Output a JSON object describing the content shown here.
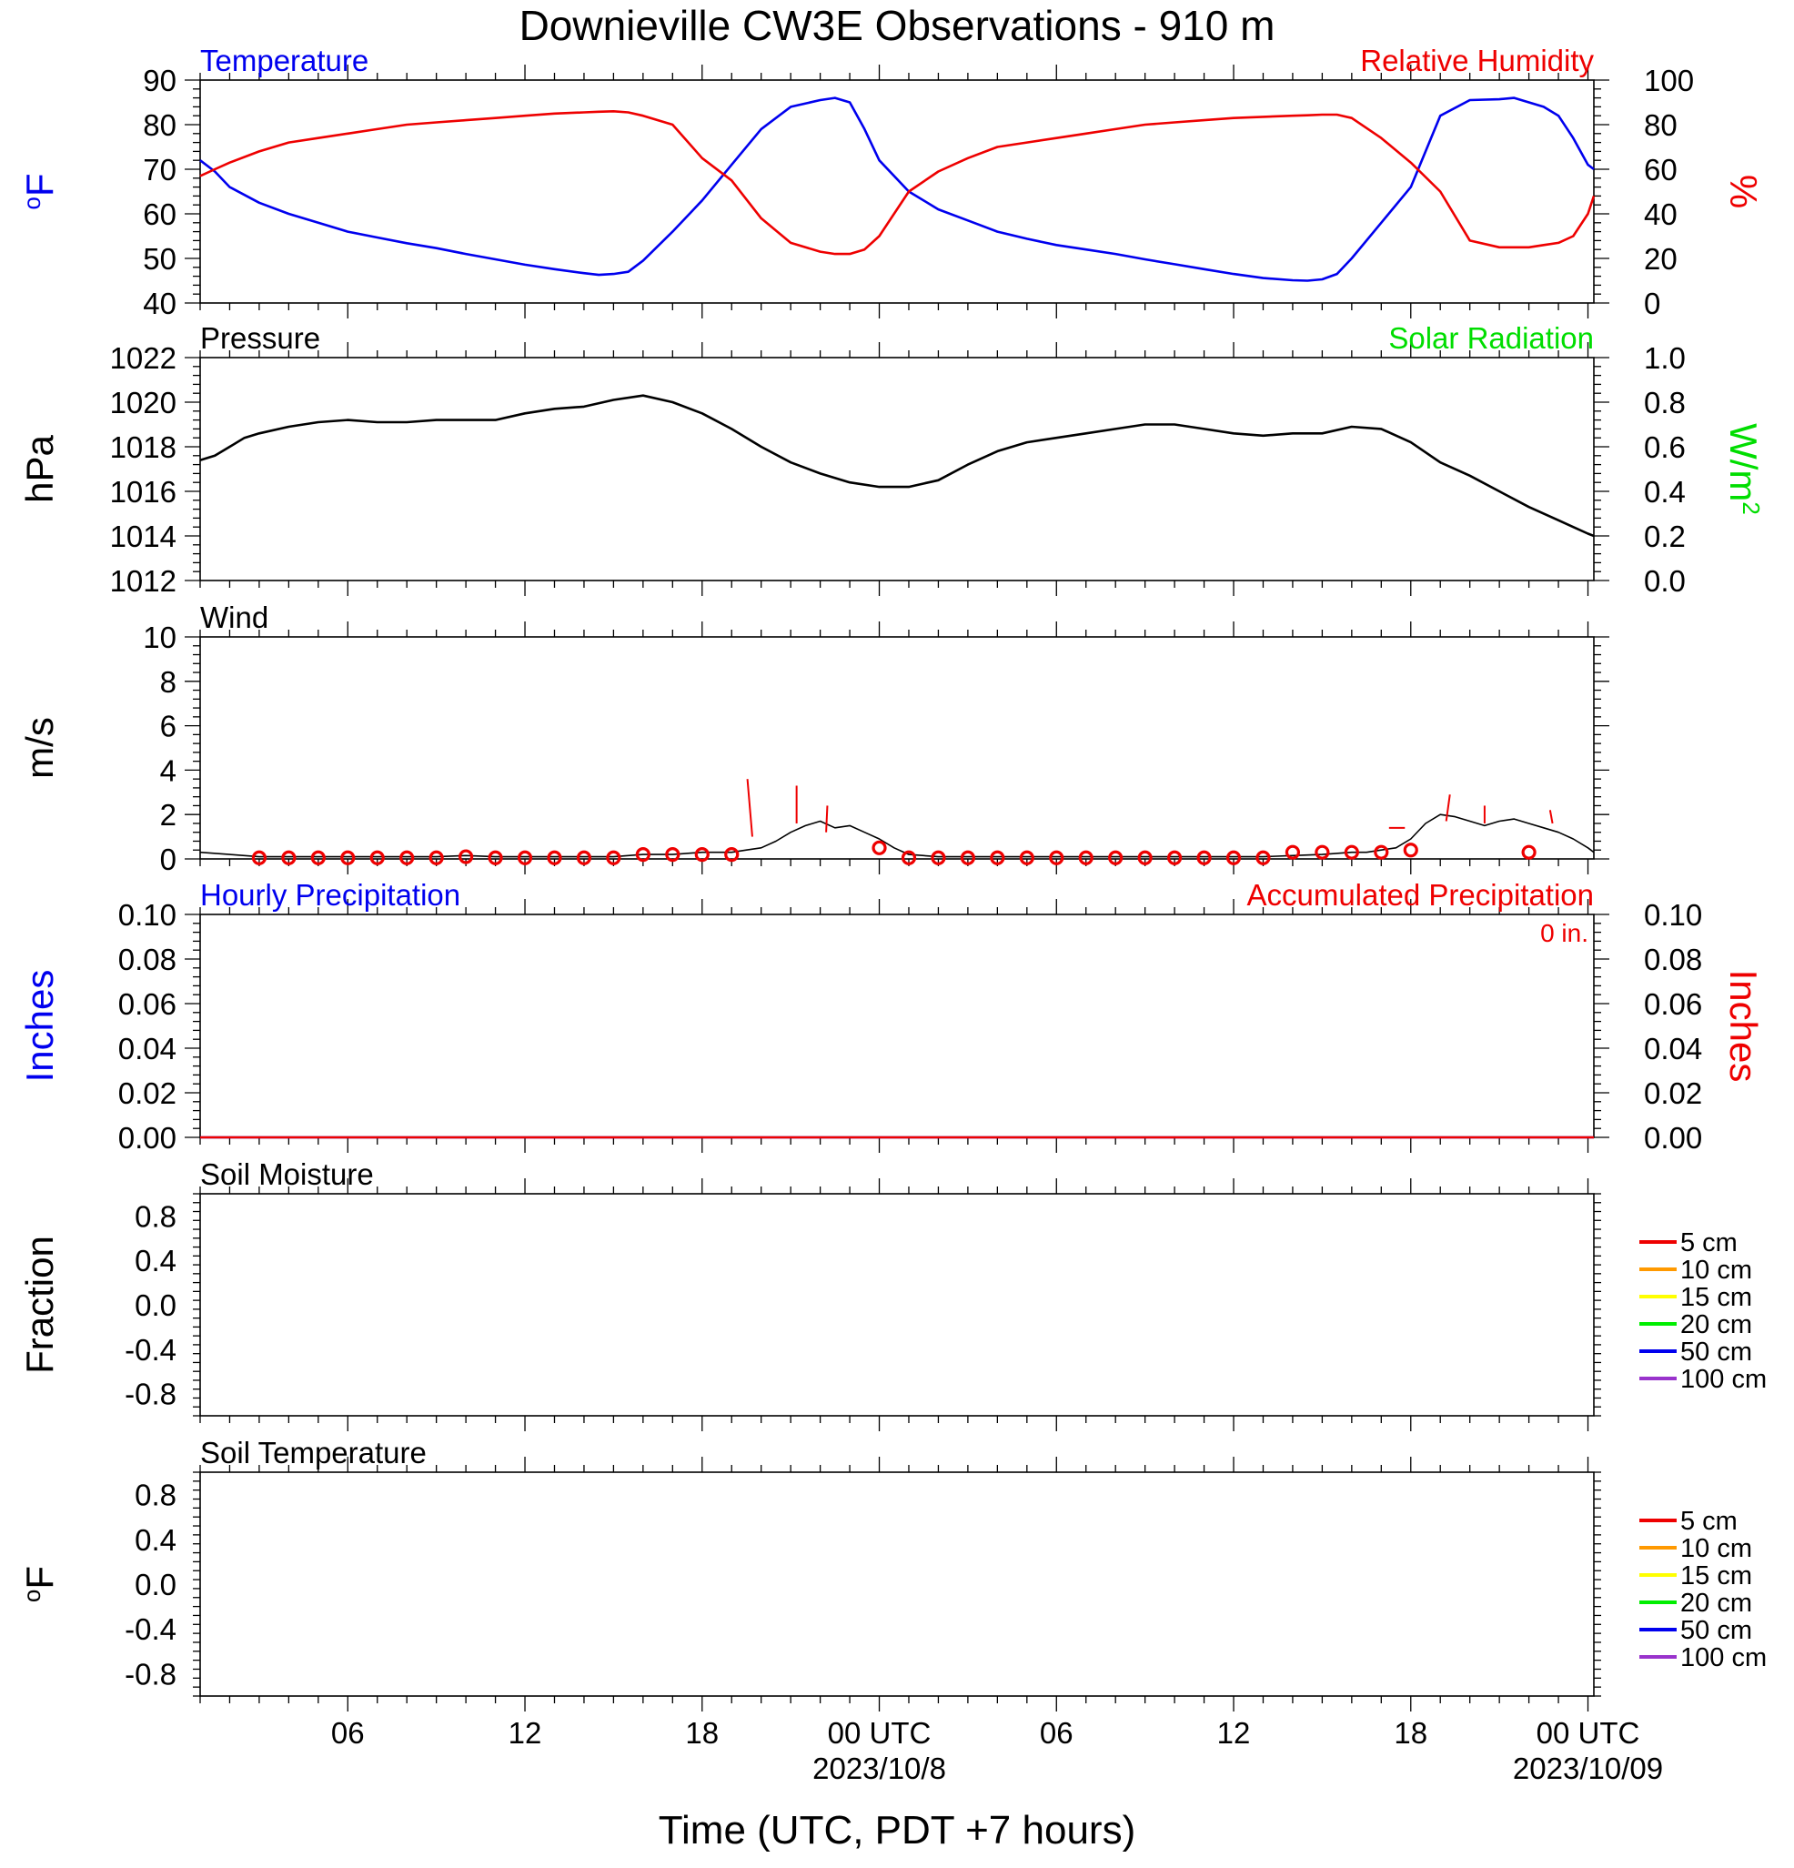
{
  "title": "Downieville CW3E Observations - 910 m",
  "xaxis": {
    "title": "Time (UTC, PDT +7 hours)",
    "tick_hours": [
      6,
      12,
      18,
      24,
      30,
      36,
      42,
      48
    ],
    "tick_labels": [
      "06",
      "12",
      "18",
      "00 UTC",
      "06",
      "12",
      "18",
      "00 UTC"
    ],
    "date_labels": [
      {
        "hour": 24,
        "text": "2023/10/8"
      },
      {
        "hour": 48,
        "text": "2023/10/09"
      }
    ],
    "range_hours": [
      1,
      48.2
    ]
  },
  "colors": {
    "temperature": "#0000ee",
    "humidity": "#ee0000",
    "solar": "#00dd00",
    "black": "#000000",
    "soil": [
      "#ee0000",
      "#ff9900",
      "#ffff00",
      "#00ee00",
      "#0000ee",
      "#9933cc"
    ]
  },
  "chart_data": [
    {
      "type": "line",
      "name": "temperature-humidity",
      "left_title": "Temperature",
      "right_title": "Relative Humidity",
      "left_unit": "oF",
      "right_unit": "%",
      "left_ticks": [
        "40",
        "50",
        "60",
        "70",
        "80",
        "90"
      ],
      "right_ticks": [
        "0",
        "20",
        "40",
        "60",
        "80",
        "100"
      ],
      "ylim_left": [
        40,
        90
      ],
      "ylim_right": [
        0,
        100
      ],
      "x_hours": [
        1,
        1.5,
        2,
        3,
        4,
        5,
        6,
        7,
        8,
        9,
        10,
        11,
        12,
        13,
        14,
        14.5,
        15,
        15.5,
        16,
        17,
        18,
        19,
        20,
        21,
        22,
        22.5,
        23,
        23.5,
        24,
        25,
        26,
        27,
        28,
        29,
        30,
        31,
        32,
        33,
        34,
        35,
        36,
        37,
        38,
        38.5,
        39,
        39.5,
        40,
        41,
        42,
        43,
        44,
        45,
        45.5,
        46,
        46.5,
        47,
        47.5,
        48,
        48.2
      ],
      "series": [
        {
          "name": "Temperature",
          "values": [
            72,
            69.5,
            66,
            62.5,
            60,
            58,
            56,
            54.7,
            53.4,
            52.3,
            51,
            49.8,
            48.6,
            47.6,
            46.7,
            46.3,
            46.5,
            47,
            49.5,
            56,
            63,
            71,
            79,
            84,
            85.5,
            86,
            85,
            79,
            72,
            65,
            61,
            58.5,
            56,
            54.4,
            53,
            52,
            51,
            49.8,
            48.7,
            47.6,
            46.5,
            45.6,
            45.1,
            45,
            45.3,
            46.5,
            50,
            58,
            66,
            82,
            85.5,
            85.7,
            86,
            85,
            84,
            82,
            77,
            71,
            70
          ]
        },
        {
          "name": "Relative Humidity",
          "values": [
            57,
            60,
            63,
            68,
            72,
            74,
            76,
            78,
            80,
            81,
            82,
            83,
            84,
            85,
            85.5,
            85.8,
            86,
            85.5,
            84,
            80,
            65,
            55,
            38,
            27,
            23,
            22,
            22,
            24,
            30,
            50,
            59,
            65,
            70,
            72,
            74,
            76,
            78,
            80,
            81,
            82,
            83,
            83.5,
            84,
            84.2,
            84.5,
            84.5,
            83,
            74,
            63,
            50,
            28,
            25,
            25,
            25,
            26,
            27,
            30,
            40,
            48
          ]
        }
      ]
    },
    {
      "type": "line",
      "name": "pressure",
      "left_title": "Pressure",
      "right_title": "Solar Radiation",
      "left_unit": "hPa",
      "right_unit": "W/m2",
      "left_ticks": [
        "1012",
        "1014",
        "1016",
        "1018",
        "1020",
        "1022"
      ],
      "right_ticks": [
        "0.0",
        "0.2",
        "0.4",
        "0.6",
        "0.8",
        "1.0"
      ],
      "ylim_left": [
        1012,
        1022
      ],
      "ylim_right": [
        0,
        1
      ],
      "x_hours": [
        1,
        1.5,
        2,
        2.5,
        3,
        4,
        5,
        6,
        7,
        8,
        9,
        10,
        11,
        12,
        13,
        14,
        15,
        16,
        17,
        18,
        19,
        20,
        21,
        22,
        23,
        24,
        25,
        26,
        27,
        28,
        29,
        30,
        31,
        32,
        33,
        34,
        35,
        36,
        37,
        38,
        39,
        40,
        41,
        42,
        43,
        44,
        45,
        46,
        47,
        47.5,
        48,
        48.2
      ],
      "series": [
        {
          "name": "Pressure",
          "values": [
            1017.4,
            1017.6,
            1018,
            1018.4,
            1018.6,
            1018.9,
            1019.1,
            1019.2,
            1019.1,
            1019.1,
            1019.2,
            1019.2,
            1019.2,
            1019.5,
            1019.7,
            1019.8,
            1020.1,
            1020.3,
            1020.0,
            1019.5,
            1018.8,
            1018.0,
            1017.3,
            1016.8,
            1016.4,
            1016.2,
            1016.2,
            1016.5,
            1017.2,
            1017.8,
            1018.2,
            1018.4,
            1018.6,
            1018.8,
            1019.0,
            1019.0,
            1018.8,
            1018.6,
            1018.5,
            1018.6,
            1018.6,
            1018.9,
            1018.8,
            1018.2,
            1017.3,
            1016.7,
            1016.0,
            1015.3,
            1014.7,
            1014.4,
            1014.1,
            1014.0
          ]
        }
      ]
    },
    {
      "type": "line",
      "name": "wind",
      "left_title": "Wind",
      "left_unit": "m/s",
      "left_ticks": [
        "0",
        "2",
        "4",
        "6",
        "8",
        "10"
      ],
      "ylim_left": [
        0,
        10
      ],
      "x_hours": [
        1,
        2,
        3,
        4,
        5,
        6,
        7,
        8,
        9,
        10,
        11,
        12,
        13,
        14,
        15,
        16,
        17,
        18,
        19,
        19.5,
        20,
        20.5,
        21,
        21.5,
        22,
        22.5,
        23,
        23.5,
        24,
        24.5,
        25,
        26,
        27,
        28,
        29,
        30,
        31,
        32,
        33,
        34,
        35,
        36,
        37,
        38,
        39,
        40,
        40.5,
        41,
        41.5,
        42,
        42.5,
        43,
        43.5,
        44,
        44.5,
        45,
        45.5,
        46,
        46.5,
        47,
        47.5,
        48,
        48.2
      ],
      "series": [
        {
          "name": "Wind Speed",
          "values": [
            0.3,
            0.2,
            0.1,
            0.1,
            0.1,
            0.1,
            0.1,
            0.1,
            0.1,
            0.15,
            0.1,
            0.1,
            0.1,
            0.1,
            0.1,
            0.2,
            0.2,
            0.3,
            0.3,
            0.4,
            0.5,
            0.8,
            1.2,
            1.5,
            1.7,
            1.4,
            1.5,
            1.2,
            0.9,
            0.5,
            0.2,
            0.1,
            0.1,
            0.1,
            0.1,
            0.1,
            0.1,
            0.1,
            0.1,
            0.1,
            0.1,
            0.1,
            0.1,
            0.15,
            0.2,
            0.3,
            0.3,
            0.4,
            0.5,
            0.9,
            1.6,
            2.0,
            1.9,
            1.7,
            1.5,
            1.7,
            1.8,
            1.6,
            1.4,
            1.2,
            0.9,
            0.5,
            0.3
          ]
        }
      ],
      "hourly_markers": {
        "hours": [
          3,
          4,
          5,
          6,
          7,
          8,
          9,
          10,
          11,
          12,
          13,
          14,
          15,
          16,
          17,
          18,
          19,
          24,
          25,
          26,
          27,
          28,
          29,
          30,
          31,
          32,
          33,
          34,
          35,
          36,
          37,
          38,
          39,
          40,
          41,
          42,
          46
        ],
        "values": [
          0.05,
          0.05,
          0.05,
          0.05,
          0.05,
          0.05,
          0.05,
          0.1,
          0.05,
          0.05,
          0.05,
          0.05,
          0.05,
          0.2,
          0.2,
          0.2,
          0.2,
          0.5,
          0.05,
          0.05,
          0.05,
          0.05,
          0.05,
          0.05,
          0.05,
          0.05,
          0.05,
          0.05,
          0.05,
          0.05,
          0.05,
          0.3,
          0.3,
          0.3,
          0.3,
          0.4,
          0.3
        ]
      },
      "direction_barbs": [
        {
          "hour": 19.7,
          "speed": 1.0,
          "dx": -0.4,
          "dy": 2.6
        },
        {
          "hour": 21.2,
          "speed": 1.6,
          "dx": 0.0,
          "dy": 1.7
        },
        {
          "hour": 22.2,
          "speed": 1.2,
          "dx": 0.1,
          "dy": 1.2
        },
        {
          "hour": 41.8,
          "speed": 1.4,
          "dx": -1.3,
          "dy": 0.0
        },
        {
          "hour": 43.2,
          "speed": 1.7,
          "dx": 0.3,
          "dy": 1.2
        },
        {
          "hour": 44.5,
          "speed": 1.6,
          "dx": 0.0,
          "dy": 0.8
        },
        {
          "hour": 46.8,
          "speed": 1.6,
          "dx": -0.2,
          "dy": 0.6
        }
      ]
    },
    {
      "type": "line",
      "name": "precipitation",
      "left_title": "Hourly Precipitation",
      "right_title": "Accumulated Precipitation",
      "annotation": "0 in.",
      "left_unit": "Inches",
      "right_unit": "Inches",
      "left_ticks": [
        "0.00",
        "0.02",
        "0.04",
        "0.06",
        "0.08",
        "0.10"
      ],
      "right_ticks": [
        "0.00",
        "0.02",
        "0.04",
        "0.06",
        "0.08",
        "0.10"
      ],
      "ylim_left": [
        0,
        0.1
      ],
      "ylim_right": [
        0,
        0.1
      ],
      "x_hours": [
        1,
        48.2
      ],
      "series": [
        {
          "name": "Hourly Precipitation",
          "values": [
            0,
            0
          ]
        },
        {
          "name": "Accumulated Precipitation",
          "values": [
            0,
            0
          ]
        }
      ]
    },
    {
      "type": "line",
      "name": "soil-moisture",
      "left_title": "Soil Moisture",
      "left_unit": "Fraction",
      "left_ticks": [
        "-0.8",
        "-0.4",
        "0.0",
        "0.4",
        "0.8"
      ],
      "ylim_left": [
        -1,
        1
      ],
      "legend": [
        "5 cm",
        "10 cm",
        "15 cm",
        "20 cm",
        "50 cm",
        "100 cm"
      ],
      "series": []
    },
    {
      "type": "line",
      "name": "soil-temperature",
      "left_title": "Soil Temperature",
      "left_unit": "oF",
      "left_ticks": [
        "-0.8",
        "-0.4",
        "0.0",
        "0.4",
        "0.8"
      ],
      "ylim_left": [
        -1,
        1
      ],
      "legend": [
        "5 cm",
        "10 cm",
        "15 cm",
        "20 cm",
        "50 cm",
        "100 cm"
      ],
      "series": []
    }
  ]
}
